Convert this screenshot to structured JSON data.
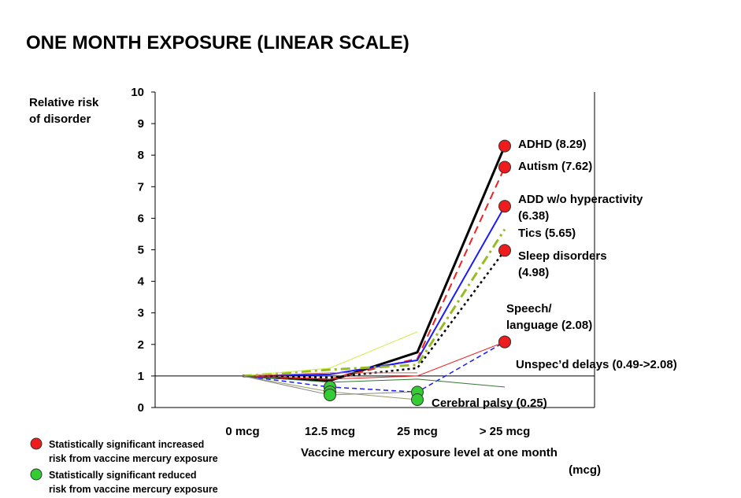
{
  "chart_data": {
    "type": "line",
    "title": "ONE MONTH EXPOSURE (LINEAR SCALE)",
    "y_label": [
      "Relative risk",
      "of disorder"
    ],
    "x_label": [
      "Vaccine mercury exposure level at one month",
      "(mcg)"
    ],
    "categories": [
      "0 mcg",
      "12.5 mcg",
      "25 mcg",
      "> 25 mcg"
    ],
    "ylim": [
      0,
      10
    ],
    "yticks": [
      0,
      1,
      2,
      3,
      4,
      5,
      6,
      7,
      8,
      9,
      10
    ],
    "hline": 1,
    "legend": [
      {
        "color": "#ee1c1c",
        "label": [
          "Statistically significant increased",
          "risk from vaccine mercury exposure"
        ]
      },
      {
        "color": "#33cc33",
        "label": [
          "Statistically significant reduced",
          "risk from vaccine mercury exposure"
        ]
      }
    ],
    "series": [
      {
        "label": [
          "ADHD (8.29)"
        ],
        "color": "#000000",
        "width": 3,
        "dash": "",
        "values": [
          1,
          0.85,
          1.75,
          8.29
        ],
        "markers": [
          null,
          null,
          null,
          "#ee1c1c"
        ]
      },
      {
        "label": [
          "Autism (7.62)"
        ],
        "color": "#ee2222",
        "width": 2,
        "dash": "10,6",
        "values": [
          1,
          0.9,
          1.55,
          7.62
        ],
        "markers": [
          null,
          null,
          null,
          "#ee1c1c"
        ]
      },
      {
        "label": [
          "ADD w/o hyperactivity",
          "(6.38)"
        ],
        "color": "#1a1aff",
        "width": 2,
        "dash": "",
        "values": [
          1,
          1.05,
          1.5,
          6.38
        ],
        "markers": [
          null,
          null,
          null,
          "#ee1c1c"
        ]
      },
      {
        "label": [
          "Tics (5.65)"
        ],
        "color": "#99bb22",
        "width": 3,
        "dash": "12,5,3,5",
        "values": [
          1,
          1.2,
          1.35,
          5.65
        ],
        "markers": [
          null,
          null,
          null,
          null
        ]
      },
      {
        "label": [
          "Sleep disorders",
          "(4.98)"
        ],
        "color": "#000000",
        "width": 2.5,
        "dash": "3,4",
        "values": [
          1,
          0.95,
          1.25,
          4.98
        ],
        "markers": [
          null,
          null,
          null,
          "#ee1c1c"
        ]
      },
      {
        "label": [
          "Speech/",
          "language (2.08)"
        ],
        "color": "#ee2222",
        "width": 1,
        "dash": "",
        "values": [
          1,
          0.9,
          1.0,
          2.08
        ],
        "markers": [
          null,
          null,
          null,
          "#ee1c1c"
        ]
      },
      {
        "label": [
          "Unspec’d delays (0.49->2.08)"
        ],
        "color": "#1a1aff",
        "width": 1.5,
        "dash": "6,4",
        "values": [
          1,
          0.65,
          0.49,
          2.08
        ],
        "markers": [
          null,
          "#33cc33",
          "#33cc33",
          "#ee1c1c"
        ]
      },
      {
        "label": [
          "Cerebral palsy (0.25)"
        ],
        "color": "#999966",
        "width": 1,
        "dash": "",
        "values": [
          1,
          0.5,
          0.25,
          null
        ],
        "markers": [
          null,
          "#33cc33",
          "#33cc33",
          null
        ]
      },
      {
        "color": "#ccee44",
        "width": 1,
        "dash": "",
        "values": [
          1,
          1.25,
          2.4,
          null
        ],
        "markers": [
          null,
          null,
          null,
          null
        ]
      },
      {
        "color": "#337733",
        "width": 1,
        "dash": "",
        "values": [
          1,
          0.8,
          0.9,
          0.65
        ],
        "markers": [
          null,
          null,
          null,
          null
        ]
      },
      {
        "color": "#888888",
        "width": 1,
        "dash": "",
        "values": [
          1,
          0.4,
          0.5,
          null
        ],
        "markers": [
          null,
          "#33cc33",
          null,
          null
        ]
      },
      {
        "color": "#cc6666",
        "width": 1,
        "dash": "",
        "values": [
          1,
          1.1,
          1.1,
          null
        ],
        "markers": [
          null,
          null,
          null,
          null
        ]
      }
    ]
  }
}
